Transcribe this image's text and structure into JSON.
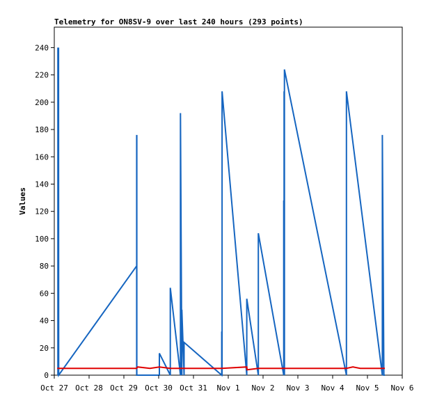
{
  "chart_data": {
    "type": "line",
    "title": "Telemetry for ON8SV-9 over last 240 hours (293 points)",
    "xlabel": "",
    "ylabel": "Values",
    "xlim": [
      "2024-10-27T00:00",
      "2024-11-06T00:00"
    ],
    "ylim": [
      0,
      255
    ],
    "x_ticks": [
      "Oct 27",
      "Oct 28",
      "Oct 29",
      "Oct 30",
      "Oct 31",
      "Nov 1",
      "Nov 2",
      "Nov 3",
      "Nov 4",
      "Nov 5",
      "Nov 6"
    ],
    "y_ticks": [
      0,
      20,
      40,
      60,
      80,
      100,
      120,
      140,
      160,
      180,
      200,
      220,
      240
    ],
    "grid": false,
    "legend": "none",
    "series": [
      {
        "color": "#1565c0",
        "x": [
          "2024-10-27T02:30",
          "2024-10-27T02:30",
          "2024-10-27T02:38",
          "2024-10-27T02:38",
          "2024-10-27T02:45",
          "2024-10-27T02:45",
          "2024-10-27T02:50",
          "2024-10-27T02:50",
          "2024-10-27T02:55",
          "2024-10-27T02:55",
          "2024-10-27T03:00",
          "2024-10-29T08:50",
          "2024-10-29T08:50",
          "2024-10-29T08:50",
          "2024-10-29T08:55",
          "2024-10-29T08:55",
          "2024-10-29T08:55",
          "2024-10-30T00:30",
          "2024-10-30T00:30",
          "2024-10-30T00:30",
          "2024-10-30T08:00",
          "2024-10-30T08:00",
          "2024-10-30T08:00",
          "2024-10-30T15:00",
          "2024-10-30T15:00",
          "2024-10-30T15:00",
          "2024-10-30T16:00",
          "2024-10-30T16:00",
          "2024-10-30T16:00",
          "2024-10-30T17:30",
          "2024-10-30T17:30",
          "2024-10-30T17:30",
          "2024-10-31T19:30",
          "2024-10-31T19:30",
          "2024-10-31T19:30",
          "2024-10-31T19:45",
          "2024-10-31T19:45",
          "2024-10-31T19:45",
          "2024-11-01T12:45",
          "2024-11-01T12:45",
          "2024-11-01T12:45",
          "2024-11-01T20:45",
          "2024-11-01T20:45",
          "2024-11-01T20:45",
          "2024-11-02T14:15",
          "2024-11-02T14:15",
          "2024-11-02T14:15",
          "2024-11-02T14:30",
          "2024-11-02T14:30",
          "2024-11-02T14:30",
          "2024-11-02T14:45",
          "2024-11-02T14:45",
          "2024-11-02T14:45",
          "2024-11-04T09:30",
          "2024-11-04T09:30",
          "2024-11-04T09:30",
          "2024-11-05T10:15",
          "2024-11-05T10:15",
          "2024-11-05T10:15",
          "2024-11-05T11:20",
          "2024-11-05T11:20",
          "2024-11-05T11:20",
          "2024-11-05T12:00",
          "2024-11-05T12:00",
          "2024-11-05T12:00"
        ],
        "y": [
          0,
          240,
          0,
          240,
          0,
          240,
          0,
          240,
          0,
          240,
          0,
          80,
          176,
          0,
          0,
          176,
          0,
          0,
          16,
          16,
          0,
          0,
          64,
          0,
          0,
          192,
          0,
          0,
          48,
          0,
          0,
          24,
          0,
          0,
          32,
          0,
          0,
          208,
          0,
          0,
          56,
          0,
          0,
          104,
          0,
          0,
          128,
          0,
          0,
          208,
          0,
          0,
          224,
          0,
          0,
          208,
          0,
          0,
          176,
          0,
          0,
          0,
          0,
          0,
          0
        ]
      },
      {
        "color": "#e00000",
        "x": [
          "2024-10-27T02:00",
          "2024-10-27T02:30",
          "2024-10-29T08:50",
          "2024-10-29T09:30",
          "2024-10-29T18:00",
          "2024-10-30T00:30",
          "2024-10-30T08:00",
          "2024-10-31T19:30",
          "2024-11-01T12:45",
          "2024-11-01T13:00",
          "2024-11-01T20:45",
          "2024-11-02T14:30",
          "2024-11-04T09:30",
          "2024-11-04T14:00",
          "2024-11-04T19:00",
          "2024-11-05T10:15",
          "2024-11-05T12:00"
        ],
        "y": [
          5,
          5,
          5,
          6,
          5,
          6,
          5,
          5,
          6,
          4,
          5,
          5,
          5,
          6,
          5,
          5,
          5
        ]
      }
    ]
  }
}
